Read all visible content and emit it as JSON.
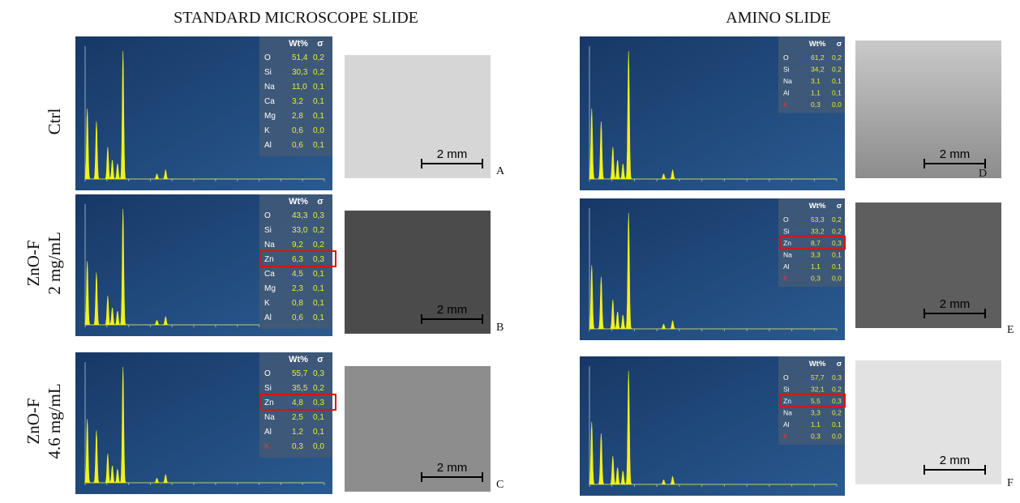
{
  "columns": [
    {
      "title": "STANDARD MICROSCOPE SLIDE",
      "panels": [
        {
          "letter": "A",
          "scale": "2 mm",
          "table": {
            "header": [
              "Wt%",
              "σ"
            ],
            "rows": [
              [
                "O",
                "51,4",
                "0,2"
              ],
              [
                "Si",
                "30,3",
                "0,2"
              ],
              [
                "Na",
                "11,0",
                "0,1"
              ],
              [
                "Ca",
                "3,2",
                "0,1"
              ],
              [
                "Mg",
                "2,8",
                "0,1"
              ],
              [
                "K",
                "0,6",
                "0,0"
              ],
              [
                "Al",
                "0,6",
                "0,1"
              ]
            ]
          }
        },
        {
          "letter": "B",
          "scale": "2 mm",
          "table": {
            "header": [
              "Wt%",
              "σ"
            ],
            "boxed_row": 3,
            "rows": [
              [
                "O",
                "43,3",
                "0,3"
              ],
              [
                "Si",
                "33,0",
                "0,2"
              ],
              [
                "Na",
                "9,2",
                "0,2"
              ],
              [
                "Zn",
                "6,3",
                "0,3"
              ],
              [
                "Ca",
                "4,5",
                "0,1"
              ],
              [
                "Mg",
                "2,3",
                "0,1"
              ],
              [
                "K",
                "0,8",
                "0,1"
              ],
              [
                "Al",
                "0,6",
                "0,1"
              ]
            ]
          }
        },
        {
          "letter": "C",
          "scale": "2 mm",
          "table": {
            "header": [
              "Wt%",
              "σ"
            ],
            "boxed_row": 2,
            "red_row": 5,
            "rows": [
              [
                "O",
                "55,7",
                "0,3"
              ],
              [
                "Si",
                "35,5",
                "0,2"
              ],
              [
                "Zn",
                "4,8",
                "0,3"
              ],
              [
                "Na",
                "2,5",
                "0,1"
              ],
              [
                "Al",
                "1,2",
                "0,1"
              ],
              [
                "K",
                "0,3",
                "0,0"
              ]
            ]
          }
        }
      ]
    },
    {
      "title": "AMINO SLIDE",
      "panels": [
        {
          "letter": "D",
          "scale": "2 mm",
          "table": {
            "header": [
              "Wt%",
              "σ"
            ],
            "red_row": 4,
            "rows": [
              [
                "O",
                "61,2",
                "0,2"
              ],
              [
                "Si",
                "34,2",
                "0,2"
              ],
              [
                "Na",
                "3,1",
                "0,1"
              ],
              [
                "Al",
                "1,1",
                "0,1"
              ],
              [
                "K",
                "0,3",
                "0,0"
              ]
            ]
          }
        },
        {
          "letter": "E",
          "scale": "2 mm",
          "table": {
            "header": [
              "Wt%",
              "σ"
            ],
            "boxed_row": 2,
            "red_row": 5,
            "rows": [
              [
                "O",
                "53,3",
                "0,2"
              ],
              [
                "Si",
                "33,2",
                "0,2"
              ],
              [
                "Zn",
                "8,7",
                "0,3"
              ],
              [
                "Na",
                "3,3",
                "0,1"
              ],
              [
                "Al",
                "1,1",
                "0,1"
              ],
              [
                "K",
                "0,3",
                "0,0"
              ]
            ]
          }
        },
        {
          "letter": "F",
          "scale": "2 mm",
          "table": {
            "header": [
              "Wt%",
              "σ"
            ],
            "boxed_row": 2,
            "red_row": 5,
            "rows": [
              [
                "O",
                "57,7",
                "0,3"
              ],
              [
                "Si",
                "32,1",
                "0,2"
              ],
              [
                "Zn",
                "5,5",
                "0,3"
              ],
              [
                "Na",
                "3,3",
                "0,2"
              ],
              [
                "Al",
                "1,1",
                "0,1"
              ],
              [
                "K",
                "0,3",
                "0,0"
              ]
            ]
          }
        }
      ]
    }
  ],
  "row_labels": [
    [
      "Ctrl"
    ],
    [
      "ZnO-F",
      "2 mg/mL"
    ],
    [
      "ZnO-F",
      "4.6 mg/mL"
    ]
  ]
}
